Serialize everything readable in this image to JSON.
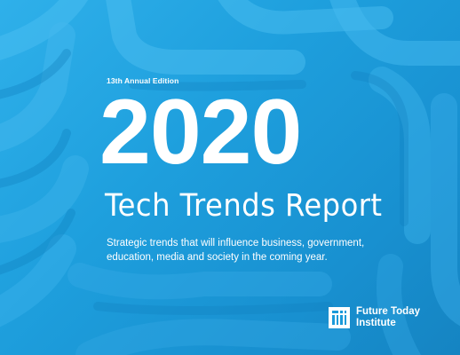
{
  "cover": {
    "edition": "13th Annual Edition",
    "year": "2020",
    "report_title": "Tech Trends Report",
    "subtitle_lines": [
      "Strategic trends that will influence business, government,",
      "education, media and society in the coming year."
    ],
    "publisher_lines": [
      "Future Today",
      "Institute"
    ],
    "colors": {
      "background": "#1b9ad9",
      "text": "#ffffff"
    }
  }
}
